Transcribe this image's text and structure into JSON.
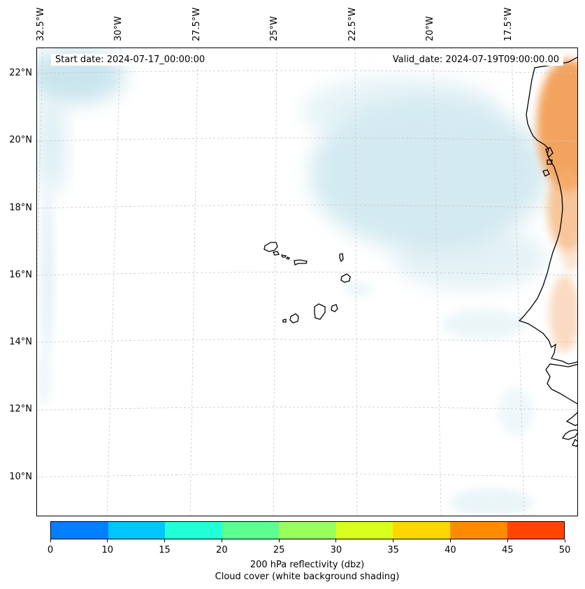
{
  "map": {
    "start_date": "Start date: 2024-07-17_00:00:00",
    "valid_date": "Valid_date: 2024-07-19T09:00:00.00",
    "lon_ticks": [
      "32.5°W",
      "30°W",
      "27.5°W",
      "25°W",
      "22.5°W",
      "20°W",
      "17.5°W"
    ],
    "lat_ticks": [
      "22°N",
      "20°N",
      "18°N",
      "16°N",
      "14°N",
      "12°N",
      "10°N"
    ],
    "grid": true,
    "coastline_color": "#000000",
    "cloud_shade_color": "#bfe0ea",
    "reflectivity_shade_color": "#f2a25a"
  },
  "colorbar": {
    "tick_labels": [
      "0",
      "10",
      "15",
      "20",
      "25",
      "30",
      "35",
      "40",
      "45",
      "50"
    ],
    "colors": [
      "#007fff",
      "#00c6ff",
      "#22ffd6",
      "#5dff8f",
      "#98ff5b",
      "#d9ff1f",
      "#ffd700",
      "#ff8c00",
      "#ff4500"
    ],
    "label": "200 hPa reflectivity (dbz)",
    "sublabel": "Cloud cover (white background shading)"
  }
}
